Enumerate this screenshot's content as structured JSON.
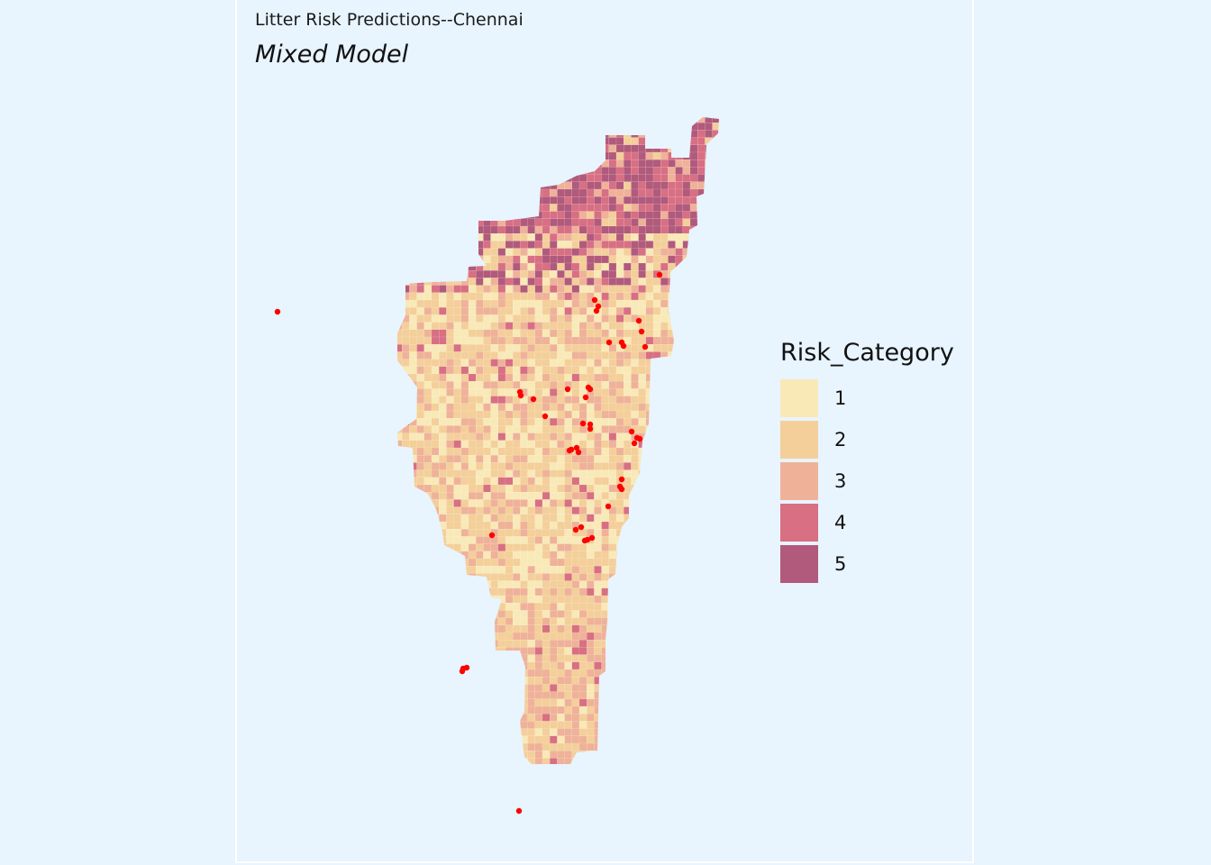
{
  "title": "Litter Risk Predictions--Chennai",
  "subtitle": "Mixed Model",
  "legend": {
    "title": "Risk_Category",
    "items": [
      {
        "label": "1",
        "color": "#f9e9b7"
      },
      {
        "label": "2",
        "color": "#f4cf9a"
      },
      {
        "label": "3",
        "color": "#efb298"
      },
      {
        "label": "4",
        "color": "#d86f83"
      },
      {
        "label": "5",
        "color": "#b15a7c"
      }
    ]
  },
  "colors": {
    "background": "#e8f4fe",
    "point": "#ff0000"
  }
}
